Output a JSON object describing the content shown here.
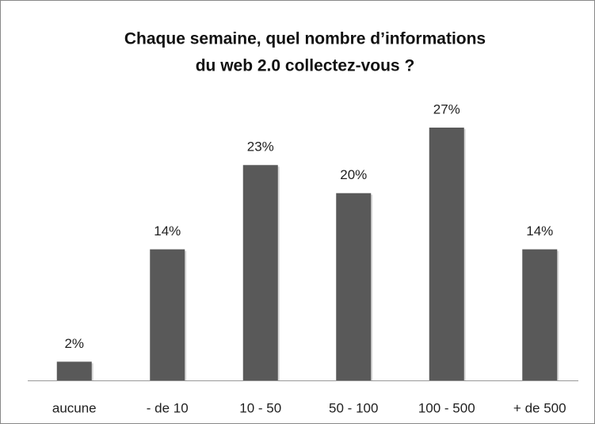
{
  "chart_data": {
    "type": "bar",
    "title": [
      "Chaque semaine, quel nombre d’informations",
      "du web 2.0 collectez-vous ?"
    ],
    "categories": [
      "aucune",
      "- de 10",
      "10 - 50",
      "50 - 100",
      "100 - 500",
      "+ de 500"
    ],
    "values": [
      2,
      14,
      23,
      20,
      27,
      14
    ],
    "value_labels": [
      "2%",
      "14%",
      "23%",
      "20%",
      "27%",
      "14%"
    ],
    "color": "#595959"
  }
}
